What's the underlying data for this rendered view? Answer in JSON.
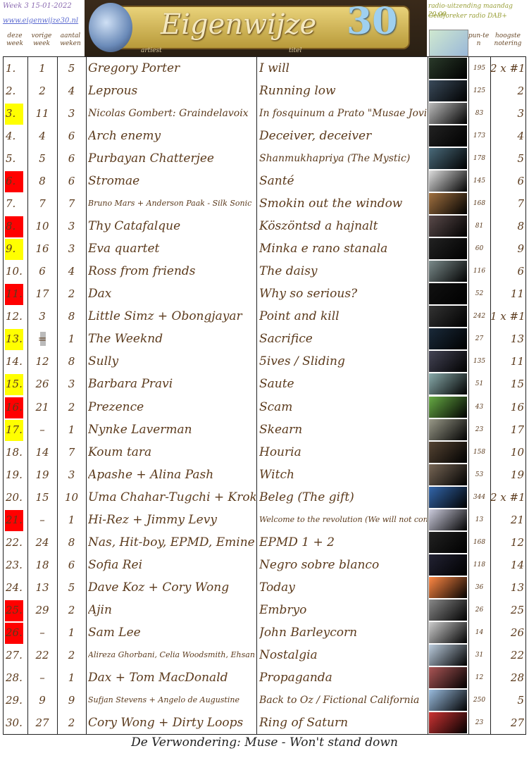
{
  "header": {
    "week": "Week 3 15-01-2022",
    "website": "www.eigenwijze30.nl",
    "title": "Eigenwijze",
    "number": "30",
    "broadcast": "radio-uitzending maandag 20.00",
    "station": "Geldforeker radio DAB+",
    "columns": {
      "this_week": "deze week",
      "last_week": "vorige week",
      "weeks": "aantal weken",
      "artist": "artiest",
      "title": "titel",
      "points": "pun-ten",
      "highest": "hoogste notering"
    }
  },
  "rows": [
    {
      "rank": "1.",
      "prev": "1",
      "weeks": "5",
      "artist": "Gregory Porter",
      "title": "I will",
      "points": "195",
      "highest": "2 x #1",
      "highlight": null
    },
    {
      "rank": "2.",
      "prev": "2",
      "weeks": "4",
      "artist": "Leprous",
      "title": "Running low",
      "points": "125",
      "highest": "2",
      "highlight": null
    },
    {
      "rank": "3.",
      "prev": "11",
      "weeks": "3",
      "artist": "Nicolas Gombert: Graindelavoix",
      "title": "In fosquinum a Prato \"Musae Jovis\"",
      "points": "83",
      "highest": "3",
      "highlight": "#ffff00"
    },
    {
      "rank": "4.",
      "prev": "4",
      "weeks": "6",
      "artist": "Arch enemy",
      "title": "Deceiver, deceiver",
      "points": "173",
      "highest": "4",
      "highlight": null
    },
    {
      "rank": "5.",
      "prev": "5",
      "weeks": "6",
      "artist": "Purbayan Chatterjee",
      "title": "Shanmukhapriya (The Mystic)",
      "points": "178",
      "highest": "5",
      "highlight": null
    },
    {
      "rank": "6.",
      "prev": "8",
      "weeks": "6",
      "artist": "Stromae",
      "title": "Santé",
      "points": "145",
      "highest": "6",
      "highlight": "#ff0000"
    },
    {
      "rank": "7.",
      "prev": "7",
      "weeks": "7",
      "artist": "Bruno Mars + Anderson Paak - Silk Sonic",
      "title": "Smokin out the window",
      "points": "168",
      "highest": "7",
      "highlight": null
    },
    {
      "rank": "8.",
      "prev": "10",
      "weeks": "3",
      "artist": "Thy Catafalque",
      "title": "Köszöntsd a hajnalt",
      "points": "81",
      "highest": "8",
      "highlight": "#ff0000"
    },
    {
      "rank": "9.",
      "prev": "16",
      "weeks": "3",
      "artist": "Eva quartet",
      "title": "Minka e rano stanala",
      "points": "60",
      "highest": "9",
      "highlight": "#ffff00"
    },
    {
      "rank": "10.",
      "prev": "6",
      "weeks": "4",
      "artist": "Ross from friends",
      "title": "The daisy",
      "points": "116",
      "highest": "6",
      "highlight": null
    },
    {
      "rank": "11.",
      "prev": "17",
      "weeks": "2",
      "artist": "Dax",
      "title": "Why so serious?",
      "points": "52",
      "highest": "11",
      "highlight": "#ff0000"
    },
    {
      "rank": "12.",
      "prev": "3",
      "weeks": "8",
      "artist": "Little Simz + Obongjayar",
      "title": "Point and kill",
      "points": "242",
      "highest": "1 x #1",
      "highlight": null
    },
    {
      "rank": "13.",
      "prev": "=",
      "weeks": "1",
      "artist": "The Weeknd",
      "title": "Sacrifice",
      "points": "27",
      "highest": "13",
      "highlight": "#ffff00"
    },
    {
      "rank": "14.",
      "prev": "12",
      "weeks": "8",
      "artist": "Sully",
      "title": "5ives / Sliding",
      "points": "135",
      "highest": "11",
      "highlight": null
    },
    {
      "rank": "15.",
      "prev": "26",
      "weeks": "3",
      "artist": "Barbara Pravi",
      "title": "Saute",
      "points": "51",
      "highest": "15",
      "highlight": "#ffff00"
    },
    {
      "rank": "16.",
      "prev": "21",
      "weeks": "2",
      "artist": "Prezence",
      "title": "Scam",
      "points": "43",
      "highest": "16",
      "highlight": "#ff0000"
    },
    {
      "rank": "17.",
      "prev": "–",
      "weeks": "1",
      "artist": "Nynke Laverman",
      "title": "Skearn",
      "points": "23",
      "highest": "17",
      "highlight": "#ffff00"
    },
    {
      "rank": "18.",
      "prev": "14",
      "weeks": "7",
      "artist": "Koum tara",
      "title": "Houria",
      "points": "158",
      "highest": "10",
      "highlight": null
    },
    {
      "rank": "19.",
      "prev": "19",
      "weeks": "3",
      "artist": "Apashe + Alina Pash",
      "title": "Witch",
      "points": "53",
      "highest": "19",
      "highlight": null
    },
    {
      "rank": "20.",
      "prev": "15",
      "weeks": "10",
      "artist": "Uma Chahar-Tugchi + Kroke",
      "title": "Beleg (The gift)",
      "points": "344",
      "highest": "2 x #1",
      "highlight": null
    },
    {
      "rank": "21.",
      "prev": "–",
      "weeks": "1",
      "artist": "Hi-Rez + Jimmy Levy",
      "title": "Welcome to the revolution (We will not comply)",
      "points": "13",
      "highest": "21",
      "highlight": "#ff0000"
    },
    {
      "rank": "22.",
      "prev": "24",
      "weeks": "8",
      "artist": "Nas, Hit-boy, EPMD, Eminem",
      "title": "EPMD 1 + 2",
      "points": "168",
      "highest": "12",
      "highlight": null
    },
    {
      "rank": "23.",
      "prev": "18",
      "weeks": "6",
      "artist": "Sofia Rei",
      "title": "Negro sobre blanco",
      "points": "118",
      "highest": "14",
      "highlight": null
    },
    {
      "rank": "24.",
      "prev": "13",
      "weeks": "5",
      "artist": "Dave Koz + Cory Wong",
      "title": "Today",
      "points": "36",
      "highest": "13",
      "highlight": null
    },
    {
      "rank": "25.",
      "prev": "29",
      "weeks": "2",
      "artist": "Ajin",
      "title": "Embryo",
      "points": "26",
      "highest": "25",
      "highlight": "#ff0000"
    },
    {
      "rank": "26.",
      "prev": "–",
      "weeks": "1",
      "artist": "Sam Lee",
      "title": "John Barleycorn",
      "points": "14",
      "highest": "26",
      "highlight": "#ff0000"
    },
    {
      "rank": "27.",
      "prev": "22",
      "weeks": "2",
      "artist": "Alireza Ghorbani, Celia Woodsmith, Ehsan Mateevi",
      "title": "Nostalgia",
      "points": "31",
      "highest": "22",
      "highlight": null
    },
    {
      "rank": "28.",
      "prev": "–",
      "weeks": "1",
      "artist": "Dax + Tom MacDonald",
      "title": "Propaganda",
      "points": "12",
      "highest": "28",
      "highlight": null
    },
    {
      "rank": "29.",
      "prev": "9",
      "weeks": "9",
      "artist": "Sufjan Stevens + Angelo de Augustine",
      "title": "Back to Oz / Fictional California",
      "points": "250",
      "highest": "5",
      "highlight": null
    },
    {
      "rank": "30.",
      "prev": "27",
      "weeks": "2",
      "artist": "Cory Wong + Dirty Loops",
      "title": "Ring of Saturn",
      "points": "23",
      "highest": "27",
      "highlight": null
    }
  ],
  "footer": "De Verwondering: Muse - Won't stand down"
}
